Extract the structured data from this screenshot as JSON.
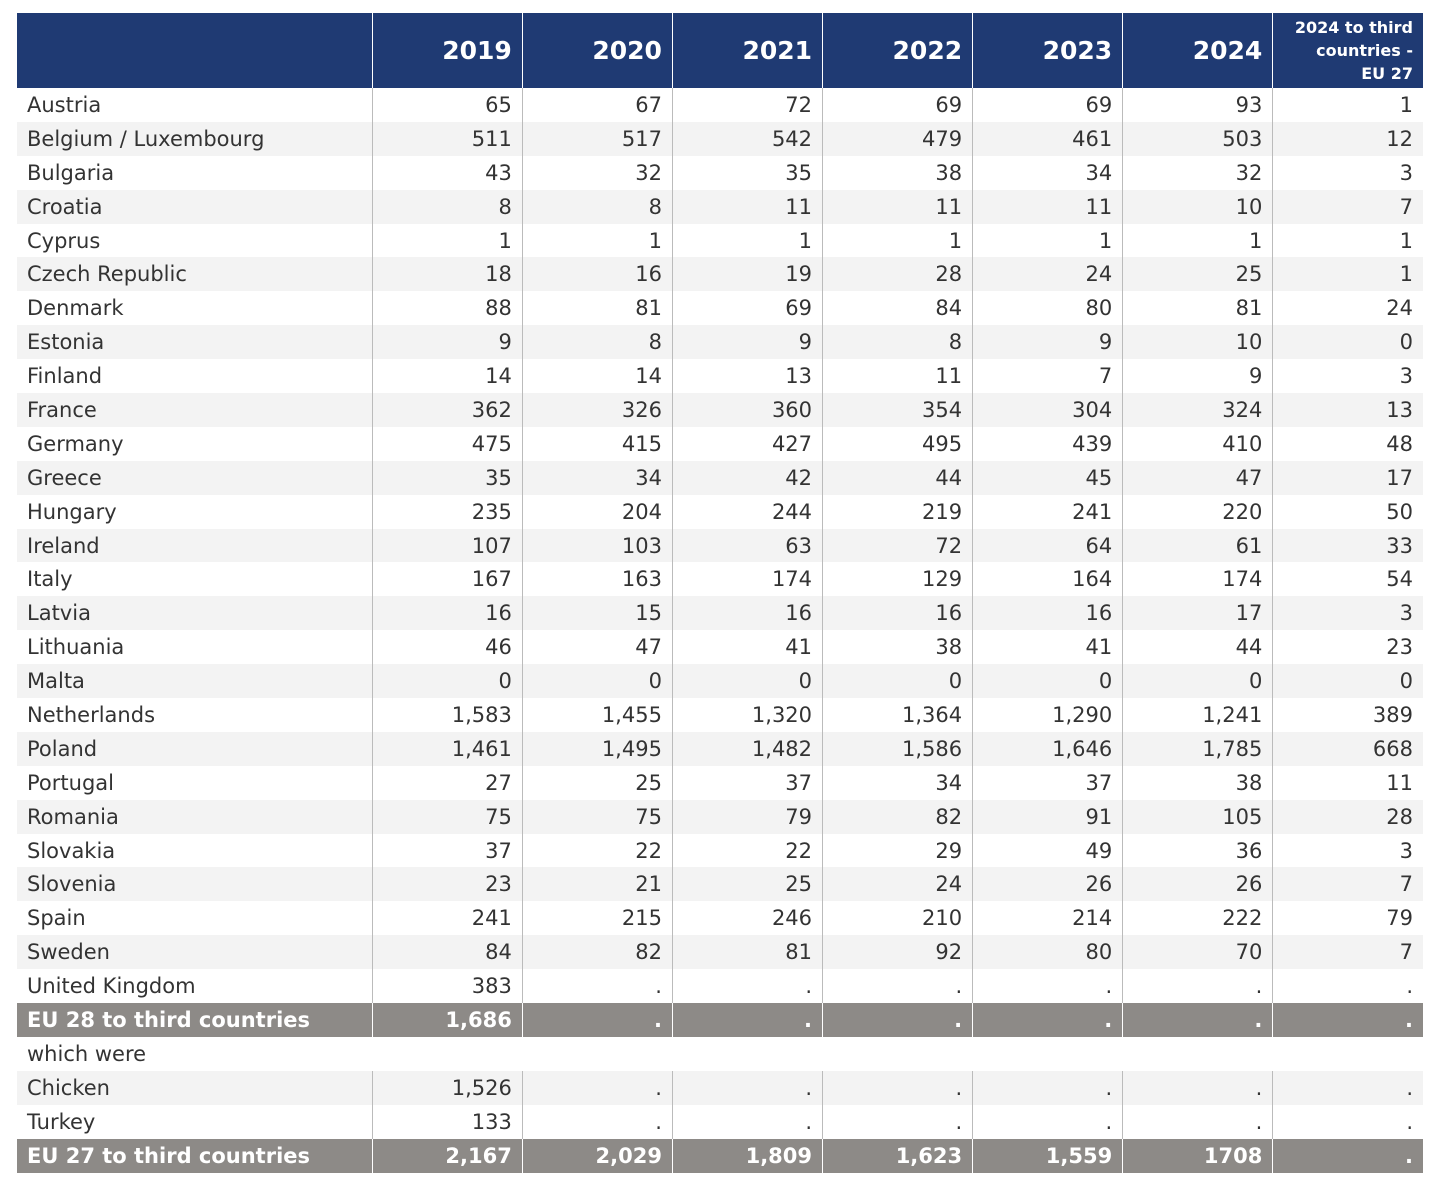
{
  "table": {
    "header": [
      "2019",
      "2020",
      "2021",
      "2022",
      "2023",
      "2024",
      "2024 to third countries - EU 27"
    ],
    "rows": [
      [
        "Austria",
        "65",
        "67",
        "72",
        "69",
        "69",
        "93",
        "1"
      ],
      [
        "Belgium / Luxembourg",
        "511",
        "517",
        "542",
        "479",
        "461",
        "503",
        "12"
      ],
      [
        "Bulgaria",
        "43",
        "32",
        "35",
        "38",
        "34",
        "32",
        "3"
      ],
      [
        "Croatia",
        "8",
        "8",
        "11",
        "11",
        "11",
        "10",
        "7"
      ],
      [
        "Cyprus",
        "1",
        "1",
        "1",
        "1",
        "1",
        "1",
        "1"
      ],
      [
        "Czech Republic",
        "18",
        "16",
        "19",
        "28",
        "24",
        "25",
        "1"
      ],
      [
        "Denmark",
        "88",
        "81",
        "69",
        "84",
        "80",
        "81",
        "24"
      ],
      [
        "Estonia",
        "9",
        "8",
        "9",
        "8",
        "9",
        "10",
        "0"
      ],
      [
        "Finland",
        "14",
        "14",
        "13",
        "11",
        "7",
        "9",
        "3"
      ],
      [
        "France",
        "362",
        "326",
        "360",
        "354",
        "304",
        "324",
        "13"
      ],
      [
        "Germany",
        "475",
        "415",
        "427",
        "495",
        "439",
        "410",
        "48"
      ],
      [
        "Greece",
        "35",
        "34",
        "42",
        "44",
        "45",
        "47",
        "17"
      ],
      [
        "Hungary",
        "235",
        "204",
        "244",
        "219",
        "241",
        "220",
        "50"
      ],
      [
        "Ireland",
        "107",
        "103",
        "63",
        "72",
        "64",
        "61",
        "33"
      ],
      [
        "Italy",
        "167",
        "163",
        "174",
        "129",
        "164",
        "174",
        "54"
      ],
      [
        "Latvia",
        "16",
        "15",
        "16",
        "16",
        "16",
        "17",
        "3"
      ],
      [
        "Lithuania",
        "46",
        "47",
        "41",
        "38",
        "41",
        "44",
        "23"
      ],
      [
        "Malta",
        "0",
        "0",
        "0",
        "0",
        "0",
        "0",
        "0"
      ],
      [
        "Netherlands",
        "1,583",
        "1,455",
        "1,320",
        "1,364",
        "1,290",
        "1,241",
        "389"
      ],
      [
        "Poland",
        "1,461",
        "1,495",
        "1,482",
        "1,586",
        "1,646",
        "1,785",
        "668"
      ],
      [
        "Portugal",
        "27",
        "25",
        "37",
        "34",
        "37",
        "38",
        "11"
      ],
      [
        "Romania",
        "75",
        "75",
        "79",
        "82",
        "91",
        "105",
        "28"
      ],
      [
        "Slovakia",
        "37",
        "22",
        "22",
        "29",
        "49",
        "36",
        "3"
      ],
      [
        "Slovenia",
        "23",
        "21",
        "25",
        "24",
        "26",
        "26",
        "7"
      ],
      [
        "Spain",
        "241",
        "215",
        "246",
        "210",
        "214",
        "222",
        "79"
      ],
      [
        "Sweden",
        "84",
        "82",
        "81",
        "92",
        "80",
        "70",
        "7"
      ],
      [
        "United Kingdom",
        "383",
        ".",
        ".",
        ".",
        ".",
        ".",
        "."
      ]
    ],
    "eu28_total": [
      "EU 28 to third countries",
      "1,686",
      ".",
      ".",
      ".",
      ".",
      ".",
      "."
    ],
    "subheading": "which were",
    "sub_rows": [
      [
        "Chicken",
        "1,526",
        ".",
        ".",
        ".",
        ".",
        ".",
        "."
      ],
      [
        "Turkey",
        "133",
        ".",
        ".",
        ".",
        ".",
        ".",
        "."
      ]
    ],
    "eu27_total": [
      "EU 27 to third countries",
      "2,167",
      "2,029",
      "1,809",
      "1,623",
      "1,559",
      "1708",
      "."
    ]
  }
}
